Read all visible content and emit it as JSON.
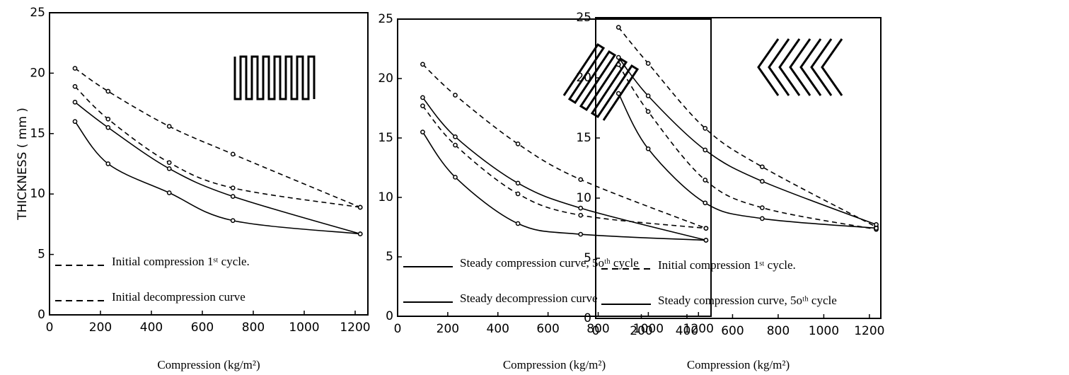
{
  "chart_data": [
    {
      "type": "line",
      "ylabel": "THICKNESS ( mm )",
      "xlabel": "Compression (kg/m²)",
      "xlim": [
        0,
        1250
      ],
      "xticks": [
        0,
        200,
        400,
        600,
        800,
        1000,
        1200
      ],
      "ylim": [
        0,
        25
      ],
      "yticks": [
        0,
        5,
        10,
        15,
        20,
        25
      ],
      "legend": "lower left",
      "series": [
        {
          "name": "Initial compression   1ˢᵗ cycle.",
          "color": "#000",
          "dash": true,
          "x": [
            100,
            230,
            470,
            720,
            1220
          ],
          "values": [
            20.4,
            18.5,
            15.6,
            13.3,
            8.9
          ]
        },
        {
          "name": "Initial decompression curve",
          "color": "#000",
          "dash": true,
          "x": [
            100,
            230,
            470,
            720,
            1220
          ],
          "values": [
            18.9,
            16.2,
            12.6,
            10.5,
            8.9
          ]
        },
        {
          "color": "#000",
          "dash": false,
          "x": [
            100,
            230,
            470,
            720,
            1220
          ],
          "values": [
            17.6,
            15.5,
            12.1,
            9.8,
            6.7
          ]
        },
        {
          "color": "#000",
          "dash": false,
          "x": [
            100,
            230,
            470,
            720,
            1220
          ],
          "values": [
            16.0,
            12.5,
            10.1,
            7.8,
            6.7
          ]
        }
      ]
    },
    {
      "type": "line",
      "xlabel": "Compression (kg/m²)",
      "xlim": [
        0,
        1250
      ],
      "xticks": [
        0,
        200,
        400,
        600,
        800,
        1000,
        1200
      ],
      "ylim": [
        0,
        25
      ],
      "yticks": [
        0,
        5,
        10,
        15,
        20,
        25
      ],
      "legend": "lower left",
      "series": [
        {
          "color": "#000",
          "dash": true,
          "x": [
            100,
            230,
            480,
            730,
            1230
          ],
          "values": [
            21.2,
            18.6,
            14.5,
            11.5,
            7.4
          ]
        },
        {
          "color": "#000",
          "dash": true,
          "x": [
            100,
            230,
            480,
            730,
            1230
          ],
          "values": [
            17.7,
            14.4,
            10.3,
            8.5,
            7.4
          ]
        },
        {
          "name": "Steady compression curve, 5oᵗʰ cycle",
          "color": "#000",
          "dash": false,
          "x": [
            100,
            230,
            480,
            730,
            1230
          ],
          "values": [
            18.4,
            15.1,
            11.2,
            9.1,
            6.4
          ]
        },
        {
          "name": "Steady decompression curve",
          "color": "#000",
          "dash": false,
          "x": [
            100,
            230,
            480,
            730,
            1230
          ],
          "values": [
            15.5,
            11.7,
            7.8,
            6.9,
            6.4
          ]
        }
      ]
    },
    {
      "type": "line",
      "xlabel": "Compression (kg/m²)",
      "xlim": [
        0,
        1250
      ],
      "xticks": [
        0,
        200,
        400,
        600,
        800,
        1000,
        1200
      ],
      "ylim": [
        0,
        25
      ],
      "yticks": [
        0,
        5,
        10,
        15,
        20,
        25
      ],
      "legend": "lower left",
      "series": [
        {
          "name": "Initial compression   1ˢᵗ cycle.",
          "color": "#000",
          "dash": true,
          "x": [
            100,
            230,
            480,
            730,
            1230
          ],
          "values": [
            24.2,
            21.2,
            15.8,
            12.6,
            7.6
          ]
        },
        {
          "name": "Steady compression curve, 5oᵗʰ cycle",
          "color": "#000",
          "dash": false,
          "x": [
            100,
            230,
            480,
            730,
            1230
          ],
          "values": [
            21.7,
            18.5,
            14.0,
            11.4,
            7.8
          ]
        },
        {
          "color": "#000",
          "dash": true,
          "x": [
            100,
            230,
            480,
            730,
            1230
          ],
          "values": [
            21.1,
            17.2,
            11.5,
            9.2,
            7.4
          ]
        },
        {
          "color": "#000",
          "dash": false,
          "x": [
            100,
            230,
            480,
            730,
            1230
          ],
          "values": [
            18.7,
            14.1,
            9.6,
            8.3,
            7.5
          ]
        }
      ]
    }
  ]
}
